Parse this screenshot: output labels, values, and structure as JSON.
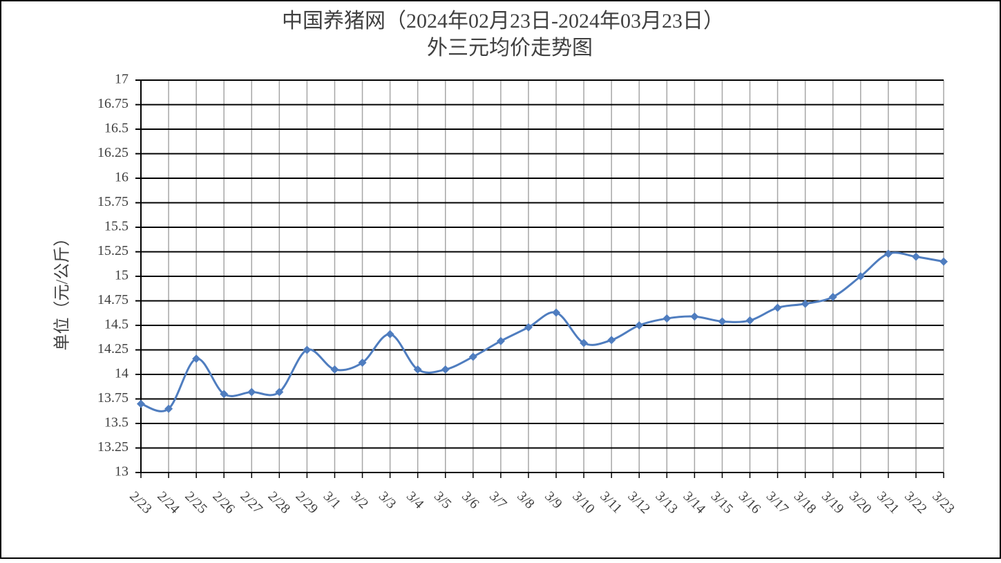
{
  "chart_data": {
    "type": "line",
    "title": "中国养猪网（2024年02月23日-2024年03月23日）",
    "subtitle": "外三元均价走势图",
    "y_label": "单位（元/公斤）",
    "categories": [
      "2/23",
      "2/24",
      "2/25",
      "2/26",
      "2/27",
      "2/28",
      "2/29",
      "3/1",
      "3/2",
      "3/3",
      "3/4",
      "3/5",
      "3/6",
      "3/7",
      "3/8",
      "3/9",
      "3/10",
      "3/11",
      "3/12",
      "3/13",
      "3/14",
      "3/15",
      "3/16",
      "3/17",
      "3/18",
      "3/19",
      "3/20",
      "3/21",
      "3/22",
      "3/23"
    ],
    "values": [
      13.7,
      13.65,
      14.16,
      13.8,
      13.82,
      13.82,
      14.25,
      14.05,
      14.12,
      14.41,
      14.05,
      14.05,
      14.18,
      14.34,
      14.48,
      14.63,
      14.32,
      14.35,
      14.5,
      14.57,
      14.59,
      14.54,
      14.55,
      14.68,
      14.72,
      14.79,
      15.0,
      15.23,
      15.2,
      15.15
    ],
    "color": "#4f7dbf",
    "smooth": true,
    "ylim": [
      13,
      17
    ],
    "yticks": [
      13,
      13.25,
      13.5,
      13.75,
      14,
      14.25,
      14.5,
      14.75,
      15,
      15.25,
      15.5,
      15.75,
      16,
      16.25,
      16.5,
      16.75,
      17
    ],
    "grid": true
  }
}
